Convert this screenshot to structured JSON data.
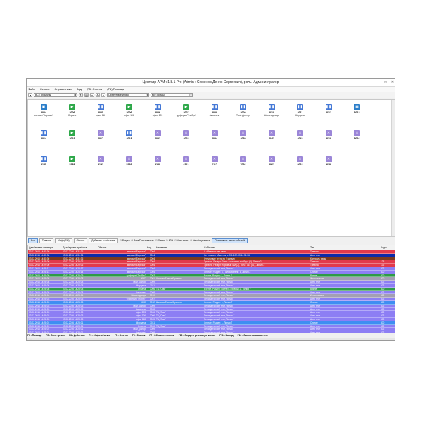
{
  "window": {
    "title": "Центавр АРМ v1.8.1 Pro (Admin : Семенов Денис Сергеевич), роль: Администратор",
    "controls": [
      "–",
      "□",
      "✕"
    ]
  },
  "menu": [
    "Файл",
    "Сервис",
    "Справочники",
    "Вид",
    "(F5) Отчеты",
    "(F1) Помощь"
  ],
  "toolbar": {
    "objects_combo": "ВСЕ объекты",
    "objects_info_combo": "Объект все инфо",
    "phrase_combo": "все фразы"
  },
  "devices": [
    {
      "num": "3004",
      "name": "магазин\"Березка\"",
      "icon": "video-icon"
    },
    {
      "num": "3006",
      "name": "Охрана",
      "icon": "play-icon"
    },
    {
      "num": "3005",
      "name": "офис 118",
      "icon": "pause-icon"
    },
    {
      "num": "3006",
      "name": "офис 106",
      "icon": "play-icon"
    },
    {
      "num": "3006",
      "name": "офис 203",
      "icon": "pause-icon"
    },
    {
      "num": "3007",
      "name": "турфирма\"Глобус\"",
      "icon": "play-icon"
    },
    {
      "num": "3008",
      "name": "Аквариль",
      "icon": "pause-icon"
    },
    {
      "num": "3009",
      "name": "Твой Доктор",
      "icon": "pause-icon"
    },
    {
      "num": "3010",
      "name": "Шоколадница",
      "icon": "pause-icon"
    },
    {
      "num": "3011",
      "name": "Мерцана",
      "icon": "pause-icon"
    },
    {
      "num": "3012",
      "name": "",
      "icon": "pause-icon"
    },
    {
      "num": "3013",
      "name": "",
      "icon": "video-icon"
    },
    {
      "num": "3014",
      "name": "",
      "icon": "pause-icon"
    },
    {
      "num": "3019",
      "name": "",
      "icon": "play-icon"
    },
    {
      "num": "4017",
      "name": "",
      "icon": "cross-icon"
    },
    {
      "num": "4018",
      "name": "",
      "icon": "pause-icon"
    },
    {
      "num": "4021",
      "name": "",
      "icon": "cross-icon"
    },
    {
      "num": "4023",
      "name": "",
      "icon": "cross-icon"
    },
    {
      "num": "4024",
      "name": "",
      "icon": "cross-icon"
    },
    {
      "num": "4039",
      "name": "",
      "icon": "cross-icon"
    },
    {
      "num": "4041",
      "name": "",
      "icon": "cross-icon"
    },
    {
      "num": "4042",
      "name": "",
      "icon": "cross-icon"
    },
    {
      "num": "5018",
      "name": "",
      "icon": "cross-icon"
    },
    {
      "num": "5016",
      "name": "",
      "icon": "cross-icon"
    },
    {
      "num": "5185",
      "name": "",
      "icon": "pause-icon"
    },
    {
      "num": "5188",
      "name": "",
      "icon": "play-icon"
    },
    {
      "num": "5191",
      "name": "",
      "icon": "cross-icon"
    },
    {
      "num": "5193",
      "name": "",
      "icon": "cross-icon"
    },
    {
      "num": "5280",
      "name": "",
      "icon": "cross-icon"
    },
    {
      "num": "6112",
      "name": "",
      "icon": "cross-icon"
    },
    {
      "num": "6117",
      "name": "",
      "icon": "cross-icon"
    },
    {
      "num": "7066",
      "name": "",
      "icon": "cross-icon"
    },
    {
      "num": "8062",
      "name": "",
      "icon": "cross-icon"
    },
    {
      "num": "8064",
      "name": "",
      "icon": "cross-icon"
    },
    {
      "num": "9039",
      "name": "",
      "icon": "cross-icon"
    }
  ],
  "filters": {
    "buttons": [
      "Все",
      "Тревоги",
      "Инфо(SM)",
      "Объект",
      "Добавить к событиям"
    ],
    "checks": [
      "Раздел",
      "Зона/Пользователь",
      "Линия",
      "ADH",
      "Авто тесты",
      "Не обслуженные"
    ],
    "stop_button": "Остановить ленту событий"
  },
  "grid": {
    "columns": [
      "Дата/время сервера",
      "Дата/время прибора",
      "Объект",
      "Код",
      "Название",
      "Событие",
      "Тип",
      "Код с..."
    ],
    "rows": [
      {
        "c": "red",
        "d1": "03.02.2016 14:31:36",
        "d2": "03.02.2016 14:31:36",
        "obj": "магазин\"Березка\"",
        "code": "3004",
        "name": "",
        "ev": "С объектом нет связи",
        "type": "Тревога",
        "k": "",
        "sel": false
      },
      {
        "c": "red",
        "d1": "03.02.2016 14:31:36",
        "d2": "03.02.2016 14:31:36",
        "obj": "магазин\"Березка\"",
        "code": "3004",
        "name": "",
        "ev": "Нет связи с объектом с 2016-02-03 14:31:36",
        "type": "Авто тест",
        "k": "",
        "sel": true
      },
      {
        "c": "brown",
        "d1": "03.02.2016 14:31:36",
        "d2": "03.02.2016 14:31:36",
        "obj": "магазин\"Березка\"",
        "code": "3004",
        "name": "",
        "ev": "Отсутствие теста по 2 каналу",
        "type": "Контроль связи",
        "k": "",
        "sel": false
      },
      {
        "c": "red",
        "d1": "03.02.2016 14:29:06",
        "d2": "03.02.2016 14:29:06",
        "obj": "магазин\"Березка\"",
        "code": "3004",
        "name": "",
        "ev": "Тревога. Раздел: Зона: состояние прибора (0), Линия 2",
        "type": "Тревога",
        "k": "123",
        "sel": false
      },
      {
        "c": "red",
        "d1": "03.02.2016 14:29:06",
        "d2": "03.02.2016 14:29:06",
        "obj": "магазин\"Березка\"",
        "code": "3004",
        "name": "",
        "ev": "Тревога. Раздел: торговый зал (2), Зона: 061 (61), Линия 2",
        "type": "Тревога",
        "k": "132",
        "sel": false
      },
      {
        "c": "purple",
        "d1": "03.02.2016 14:28:17",
        "d2": "03.02.2016 14:28:17",
        "obj": "магазин\"Березка\"",
        "code": "3004",
        "name": "",
        "ev": "Периодический тест, Линия 2",
        "type": "Авто тест",
        "k": "602",
        "sel": false
      },
      {
        "c": "purple",
        "d1": "03.02.2016 14:28:14",
        "d2": "03.02.2016 14:28:14",
        "obj": "магазин\"Березка\"",
        "code": "3004",
        "name": "",
        "ev": "Снятие. Раздел: 5, Пользователь: 8, Линия 2",
        "type": "Снятие",
        "k": "400",
        "sel": false
      },
      {
        "c": "green",
        "d1": "03.02.2016 14:28:09",
        "d2": "03.02.2016 14:28:09",
        "obj": "турфирма\"Глобус\"",
        "code": "3007",
        "name": "",
        "ev": "Взятие. Раздел: 1, Линия 7",
        "type": "Взятие",
        "k": "400",
        "sel": false
      },
      {
        "c": "gray",
        "d1": "03.02.2016 14:28:08",
        "d2": "03.02.2016 14:28:08",
        "obj": "КПС",
        "code": "3001",
        "name": "Шилова Елена Юрьевна",
        "ev": "Периодический тест, Линия 7",
        "type": "Информация",
        "k": "400",
        "sel": false
      },
      {
        "c": "purple",
        "d1": "03.02.2016 14:28:08",
        "d2": "03.02.2016 14:28:08",
        "obj": "Твой Доктор",
        "code": "3009",
        "name": "",
        "ev": "Периодический тест, Линия 7",
        "type": "Авто тест",
        "k": "602",
        "sel": false
      },
      {
        "c": "purple",
        "d1": "03.02.2016 14:28:08",
        "d2": "03.02.2016 14:28:08",
        "obj": "Мерцана",
        "code": "3011",
        "name": "",
        "ev": "Периодический тест, Линия 7",
        "type": "Авто тест",
        "k": "602",
        "sel": false
      },
      {
        "c": "green",
        "d1": "03.02.2016 14:28:08",
        "d2": "03.02.2016 14:28:08",
        "obj": "Охрана",
        "code": "3006",
        "name": "ТЦ \"Сим\"",
        "ev": "Взятие. Раздел: комната охраны (1), Линия 7",
        "type": "Взятие",
        "k": "400",
        "sel": false
      },
      {
        "c": "purple",
        "d1": "03.02.2016 14:28:08",
        "d2": "03.02.2016 14:28:08",
        "obj": "Аквариль",
        "code": "3008",
        "name": "",
        "ev": "Периодический тест, Линия 7",
        "type": "Авто тест",
        "k": "602",
        "sel": false
      },
      {
        "c": "gray",
        "d1": "03.02.2016 14:28:04",
        "d2": "03.02.2016 14:28:04",
        "obj": "Шоколадница",
        "code": "3010",
        "name": "",
        "ev": "Периодический тест, Линия 7",
        "type": "Информация",
        "k": "602",
        "sel": false
      },
      {
        "c": "purple",
        "d1": "03.02.2016 14:28:03",
        "d2": "03.02.2016 14:28:03",
        "obj": "турфирма\"Глобус\"",
        "code": "3007",
        "name": "",
        "ev": "Периодический тест, Линия 7",
        "type": "Авто тест",
        "k": "602",
        "sel": false
      },
      {
        "c": "blue",
        "d1": "03.02.2016 14:28:03",
        "d2": "03.02.2016 14:28:03",
        "obj": "КПС",
        "code": "3012",
        "name": "Шилова Елена Юрьевна",
        "ev": "Снятие. Раздел: 1, Линия 7",
        "type": "Снятие",
        "k": "400",
        "sel": false
      },
      {
        "c": "purple",
        "d1": "03.02.2016 14:28:03",
        "d2": "03.02.2016 14:28:03",
        "obj": "Твой Доктор",
        "code": "3009",
        "name": "",
        "ev": "Периодический тест, Линия 7",
        "type": "Авто тест",
        "k": "602",
        "sel": false
      },
      {
        "c": "purple",
        "d1": "03.02.2016 14:28:03",
        "d2": "03.02.2016 14:28:03",
        "obj": "Аквариль",
        "code": "3008",
        "name": "",
        "ev": "Периодический тест, Линия 7",
        "type": "Авто тест",
        "k": "602",
        "sel": false
      },
      {
        "c": "purple",
        "d1": "03.02.2016 14:28:03",
        "d2": "03.02.2016 14:28:03",
        "obj": "офис 203",
        "code": "3006",
        "name": "ТЦ \"Сим\"",
        "ev": "Периодический тест, Линия 7",
        "type": "Авто тест",
        "k": "602",
        "sel": false
      },
      {
        "c": "purple",
        "d1": "03.02.2016 14:28:03",
        "d2": "03.02.2016 14:28:03",
        "obj": "офис 106",
        "code": "3006",
        "name": "ТЦ \"Сим\"",
        "ev": "Периодический тест, Линия 7",
        "type": "Авто тест",
        "k": "602",
        "sel": false
      },
      {
        "c": "purple",
        "d1": "03.02.2016 14:28:03",
        "d2": "03.02.2016 14:28:03",
        "obj": "офис 118",
        "code": "3005",
        "name": "ТЦ \"Сим\"",
        "ev": "Периодический тест, Линия 7",
        "type": "Авто тест",
        "k": "602",
        "sel": false
      },
      {
        "c": "blue",
        "d1": "03.02.2016 14:28:01",
        "d2": "03.02.2016 14:28:01",
        "obj": "Мерцана",
        "code": "3011",
        "name": "",
        "ev": "Снятие. Раздел: 1, Линия 7",
        "type": "Снятие",
        "k": "400",
        "sel": false
      },
      {
        "c": "purple",
        "d1": "03.02.2016 14:28:01",
        "d2": "03.02.2016 14:28:01",
        "obj": "Охрана",
        "code": "3006",
        "name": "ТЦ \"Сим\"",
        "ev": "Периодический тест, Линия 7",
        "type": "Авто тест",
        "k": "602",
        "sel": false
      },
      {
        "c": "purple",
        "d1": "03.02.2016 14:28:01",
        "d2": "03.02.2016 14:28:01",
        "obj": "Твой Доктор",
        "code": "3009",
        "name": "",
        "ev": "Периодический тест, Линия 7",
        "type": "Авто тест",
        "k": "602",
        "sel": false
      },
      {
        "c": "purple",
        "d1": "03.02.2016 14:28:01",
        "d2": "03.02.2016 14:28:01",
        "obj": "Аквариль",
        "code": "3008",
        "name": "",
        "ev": "Периодический тест, Линия 7",
        "type": "Авто тест",
        "k": "602",
        "sel": false
      }
    ]
  },
  "row_colors": {
    "red": "#e2394b",
    "brown": "#7b3b1e",
    "purple": "#8d7ef4",
    "green": "#2e9a47",
    "gray": "#a39fb4",
    "blue": "#3f8ef2",
    "selected": "#0a2aa8"
  },
  "device_icon_colors": {
    "play-icon": "#2ea84a",
    "pause-icon": "#4478d6",
    "video-icon": "#2b7ec9",
    "cross-icon": "#9b86d8"
  },
  "fkeys": [
    "F1 - Помощь",
    "F2 - Окно тревог",
    "F3 - Действия",
    "F4 - Инфо объекта",
    "F5 - Отчеты",
    "F6 - Звонок",
    "F7 - Обновить списки",
    "F10 - Создать резервную копию",
    "F11 - Выход",
    "F12 - Смена пользователя"
  ],
  "status": [
    "Сейчас 03.02.2016",
    "БД доступна",
    "Последнее обновление: 14:32:39 (за 0.027 сек.)",
    "Объектов: 36",
    "Событий: 1202",
    "Загрузка БД 96 %",
    "Модем для SMS не подключен"
  ]
}
